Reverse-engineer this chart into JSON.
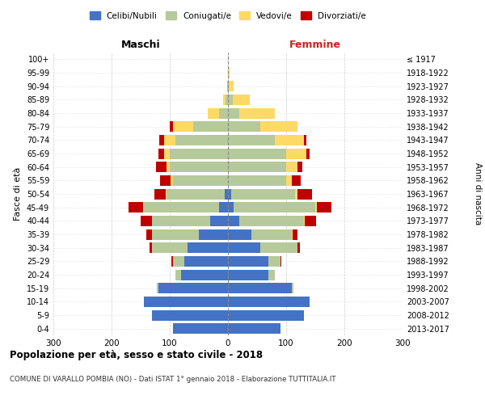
{
  "age_groups": [
    "0-4",
    "5-9",
    "10-14",
    "15-19",
    "20-24",
    "25-29",
    "30-34",
    "35-39",
    "40-44",
    "45-49",
    "50-54",
    "55-59",
    "60-64",
    "65-69",
    "70-74",
    "75-79",
    "80-84",
    "85-89",
    "90-94",
    "95-99",
    "100+"
  ],
  "birth_years": [
    "2013-2017",
    "2008-2012",
    "2003-2007",
    "1998-2002",
    "1993-1997",
    "1988-1992",
    "1983-1987",
    "1978-1982",
    "1973-1977",
    "1968-1972",
    "1963-1967",
    "1958-1962",
    "1953-1957",
    "1948-1952",
    "1943-1947",
    "1938-1942",
    "1933-1937",
    "1928-1932",
    "1923-1927",
    "1918-1922",
    "≤ 1917"
  ],
  "maschi": {
    "celibi": [
      95,
      130,
      145,
      120,
      80,
      75,
      70,
      50,
      30,
      15,
      5,
      0,
      0,
      0,
      0,
      0,
      0,
      0,
      0,
      0,
      0
    ],
    "coniugati": [
      0,
      0,
      0,
      2,
      10,
      20,
      60,
      80,
      100,
      130,
      100,
      95,
      100,
      100,
      90,
      60,
      15,
      4,
      1,
      0,
      0
    ],
    "vedovi": [
      0,
      0,
      0,
      0,
      0,
      0,
      0,
      0,
      0,
      1,
      2,
      3,
      5,
      10,
      20,
      35,
      20,
      5,
      0,
      0,
      0
    ],
    "divorziati": [
      0,
      0,
      0,
      0,
      0,
      2,
      5,
      10,
      20,
      25,
      20,
      18,
      18,
      10,
      8,
      5,
      0,
      0,
      0,
      0,
      0
    ]
  },
  "femmine": {
    "nubili": [
      90,
      130,
      140,
      110,
      70,
      70,
      55,
      40,
      20,
      10,
      5,
      0,
      0,
      0,
      0,
      0,
      0,
      0,
      0,
      0,
      0
    ],
    "coniugate": [
      0,
      0,
      0,
      2,
      10,
      20,
      65,
      70,
      110,
      140,
      110,
      100,
      100,
      100,
      80,
      55,
      20,
      8,
      2,
      0,
      0
    ],
    "vedove": [
      0,
      0,
      0,
      0,
      0,
      0,
      0,
      1,
      2,
      3,
      5,
      10,
      20,
      35,
      50,
      65,
      60,
      30,
      8,
      3,
      0
    ],
    "divorziate": [
      0,
      0,
      0,
      0,
      0,
      2,
      3,
      8,
      20,
      25,
      25,
      15,
      8,
      5,
      5,
      0,
      0,
      0,
      0,
      0,
      0
    ]
  },
  "colors": {
    "celibi": "#4472C4",
    "coniugati": "#B5C99A",
    "vedovi": "#FFD966",
    "divorziati": "#C00000"
  },
  "xlim": 300,
  "title": "Popolazione per età, sesso e stato civile - 2018",
  "subtitle": "COMUNE DI VARALLO POMBIA (NO) - Dati ISTAT 1° gennaio 2018 - Elaborazione TUTTITALIA.IT",
  "ylabel": "Fasce di età",
  "ylabel_right": "Anni di nascita"
}
